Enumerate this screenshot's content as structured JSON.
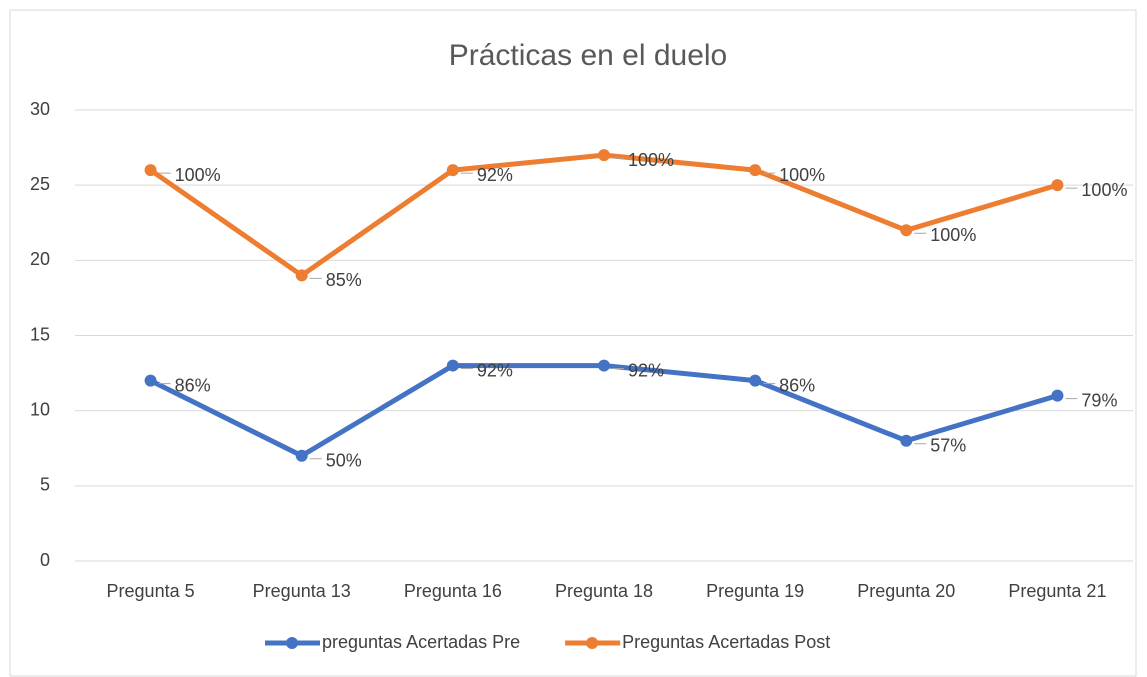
{
  "chart_data": {
    "type": "line",
    "title": "Prácticas en el duelo",
    "categories": [
      "Pregunta 5",
      "Pregunta 13",
      "Pregunta 16",
      "Pregunta 18",
      "Pregunta 19",
      "Pregunta 20",
      "Pregunta 21"
    ],
    "series": [
      {
        "name": "preguntas Acertadas Pre",
        "color": "#4472c4",
        "values": [
          12,
          7,
          13,
          13,
          12,
          8,
          11
        ],
        "point_labels": [
          "86%",
          "50%",
          "92%",
          "92%",
          "86%",
          "57%",
          "79%"
        ]
      },
      {
        "name": "Preguntas Acertadas Post",
        "color": "#ed7d31",
        "values": [
          26,
          19,
          26,
          27,
          26,
          22,
          25
        ],
        "point_labels": [
          "100%",
          "85%",
          "92%",
          "100%",
          "100%",
          "100%",
          "100%"
        ]
      }
    ],
    "ylim": [
      0,
      30
    ],
    "yticks": [
      0,
      5,
      10,
      15,
      20,
      25,
      30
    ],
    "grid": true,
    "legend": "bottom"
  }
}
